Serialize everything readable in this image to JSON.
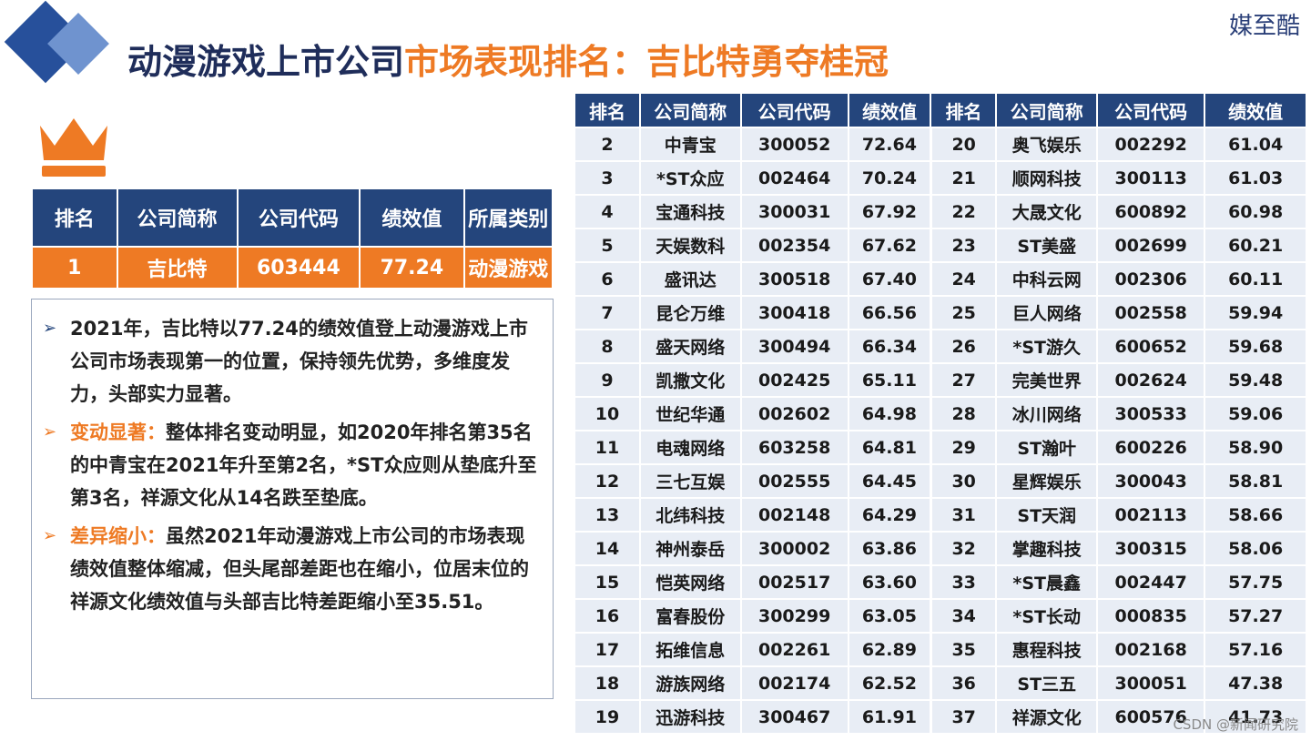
{
  "title": {
    "part1": "动漫游戏上市公司",
    "part2": "市场表现排名：吉比特勇夺桂冠"
  },
  "brand": "媒至酷",
  "top_table": {
    "headers": [
      "排名",
      "公司简称",
      "公司代码",
      "绩效值",
      "所属类别"
    ],
    "row": [
      "1",
      "吉比特",
      "603444",
      "77.24",
      "动漫游戏"
    ]
  },
  "description": [
    {
      "label": "",
      "text": "2021年，吉比特以77.24的绩效值登上动漫游戏上市公司市场表现第一的位置，保持领先优势，多维度发力，头部实力显著。"
    },
    {
      "label": "变动显著：",
      "text": "整体排名变动明显，如2020年排名第35名的中青宝在2021年升至第2名，*ST众应则从垫底升至第3名，祥源文化从14名跌至垫底。"
    },
    {
      "label": "差异缩小：",
      "text": "虽然2021年动漫游戏上市公司的市场表现绩效值整体缩减，但头尾部差距也在缩小，位居末位的祥源文化绩效值与头部吉比特差距缩小至35.51。"
    }
  ],
  "rank_table": {
    "headers": [
      "排名",
      "公司简称",
      "公司代码",
      "绩效值",
      "排名",
      "公司简称",
      "公司代码",
      "绩效值"
    ],
    "rows": [
      [
        "2",
        "中青宝",
        "300052",
        "72.64",
        "20",
        "奥飞娱乐",
        "002292",
        "61.04"
      ],
      [
        "3",
        "*ST众应",
        "002464",
        "70.24",
        "21",
        "顺网科技",
        "300113",
        "61.03"
      ],
      [
        "4",
        "宝通科技",
        "300031",
        "67.92",
        "22",
        "大晟文化",
        "600892",
        "60.98"
      ],
      [
        "5",
        "天娱数科",
        "002354",
        "67.62",
        "23",
        "ST美盛",
        "002699",
        "60.21"
      ],
      [
        "6",
        "盛讯达",
        "300518",
        "67.40",
        "24",
        "中科云网",
        "002306",
        "60.11"
      ],
      [
        "7",
        "昆仑万维",
        "300418",
        "66.56",
        "25",
        "巨人网络",
        "002558",
        "59.94"
      ],
      [
        "8",
        "盛天网络",
        "300494",
        "66.34",
        "26",
        "*ST游久",
        "600652",
        "59.68"
      ],
      [
        "9",
        "凯撒文化",
        "002425",
        "65.11",
        "27",
        "完美世界",
        "002624",
        "59.48"
      ],
      [
        "10",
        "世纪华通",
        "002602",
        "64.98",
        "28",
        "冰川网络",
        "300533",
        "59.06"
      ],
      [
        "11",
        "电魂网络",
        "603258",
        "64.81",
        "29",
        "ST瀚叶",
        "600226",
        "58.90"
      ],
      [
        "12",
        "三七互娱",
        "002555",
        "64.45",
        "30",
        "星辉娱乐",
        "300043",
        "58.81"
      ],
      [
        "13",
        "北纬科技",
        "002148",
        "64.29",
        "31",
        "ST天润",
        "002113",
        "58.66"
      ],
      [
        "14",
        "神州泰岳",
        "300002",
        "63.86",
        "32",
        "掌趣科技",
        "300315",
        "58.06"
      ],
      [
        "15",
        "恺英网络",
        "002517",
        "63.60",
        "33",
        "*ST晨鑫",
        "002447",
        "57.75"
      ],
      [
        "16",
        "富春股份",
        "300299",
        "63.05",
        "34",
        "*ST长动",
        "000835",
        "57.27"
      ],
      [
        "17",
        "拓维信息",
        "002261",
        "62.89",
        "35",
        "惠程科技",
        "002168",
        "57.16"
      ],
      [
        "18",
        "游族网络",
        "002174",
        "62.52",
        "36",
        "ST三五",
        "300051",
        "47.38"
      ],
      [
        "19",
        "迅游科技",
        "300467",
        "61.91",
        "37",
        "祥源文化",
        "600576",
        "41.73"
      ]
    ]
  },
  "watermark": "CSDN @新闻研究院",
  "colors": {
    "navy": "#24457c",
    "orange": "#ee7a24",
    "cell_bg": "#e8edf5"
  },
  "icons": {
    "logo": "diamond-logo-icon",
    "crown": "crown-icon"
  }
}
